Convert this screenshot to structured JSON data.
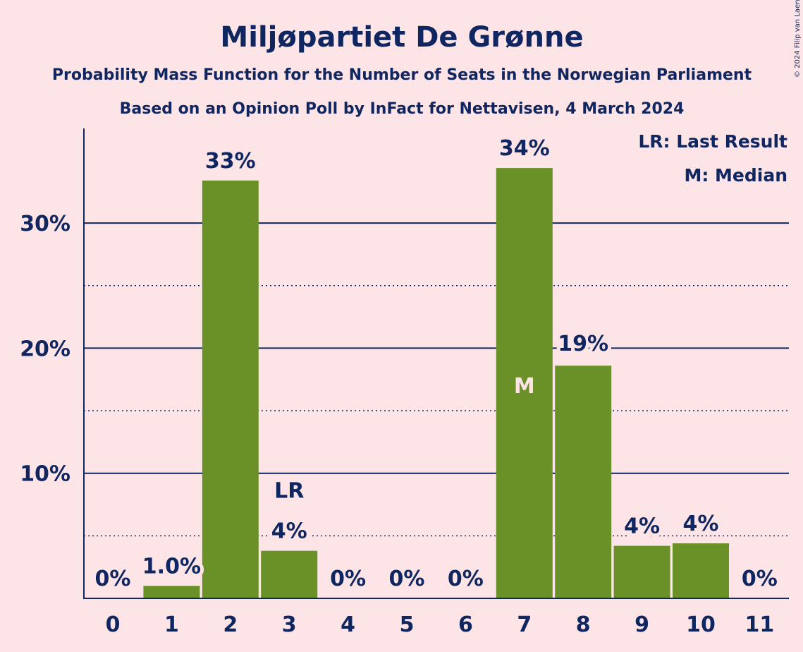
{
  "copyright": "© 2024 Filip van Laenen",
  "chart_data": {
    "type": "bar",
    "title": "Miljøpartiet De Grønne",
    "subtitle": "Probability Mass Function for the Number of Seats in the Norwegian Parliament",
    "subtitle2": "Based on an Opinion Poll by InFact for Nettavisen, 4 March 2024",
    "categories": [
      "0",
      "1",
      "2",
      "3",
      "4",
      "5",
      "6",
      "7",
      "8",
      "9",
      "10",
      "11"
    ],
    "values": [
      0,
      1.0,
      33.4,
      3.8,
      0,
      0,
      0,
      34.4,
      18.6,
      4.2,
      4.4,
      0
    ],
    "value_labels": [
      "0%",
      "1.0%",
      "33%",
      "4%",
      "0%",
      "0%",
      "0%",
      "34%",
      "19%",
      "4%",
      "4%",
      "0%"
    ],
    "y_ticks": [
      {
        "value": 10,
        "label": "10%"
      },
      {
        "value": 20,
        "label": "20%"
      },
      {
        "value": 30,
        "label": "30%"
      }
    ],
    "minor_grid": [
      5,
      15,
      25
    ],
    "ylim": [
      0,
      37.5
    ],
    "last_result_index": 3,
    "last_result_label": "LR",
    "median_index": 7,
    "median_label": "M",
    "legend": {
      "placement": "top-right",
      "items": [
        "LR: Last Result",
        "M: Median"
      ]
    },
    "bar_color": "#6a9128",
    "axis_color": "#0f2660"
  }
}
